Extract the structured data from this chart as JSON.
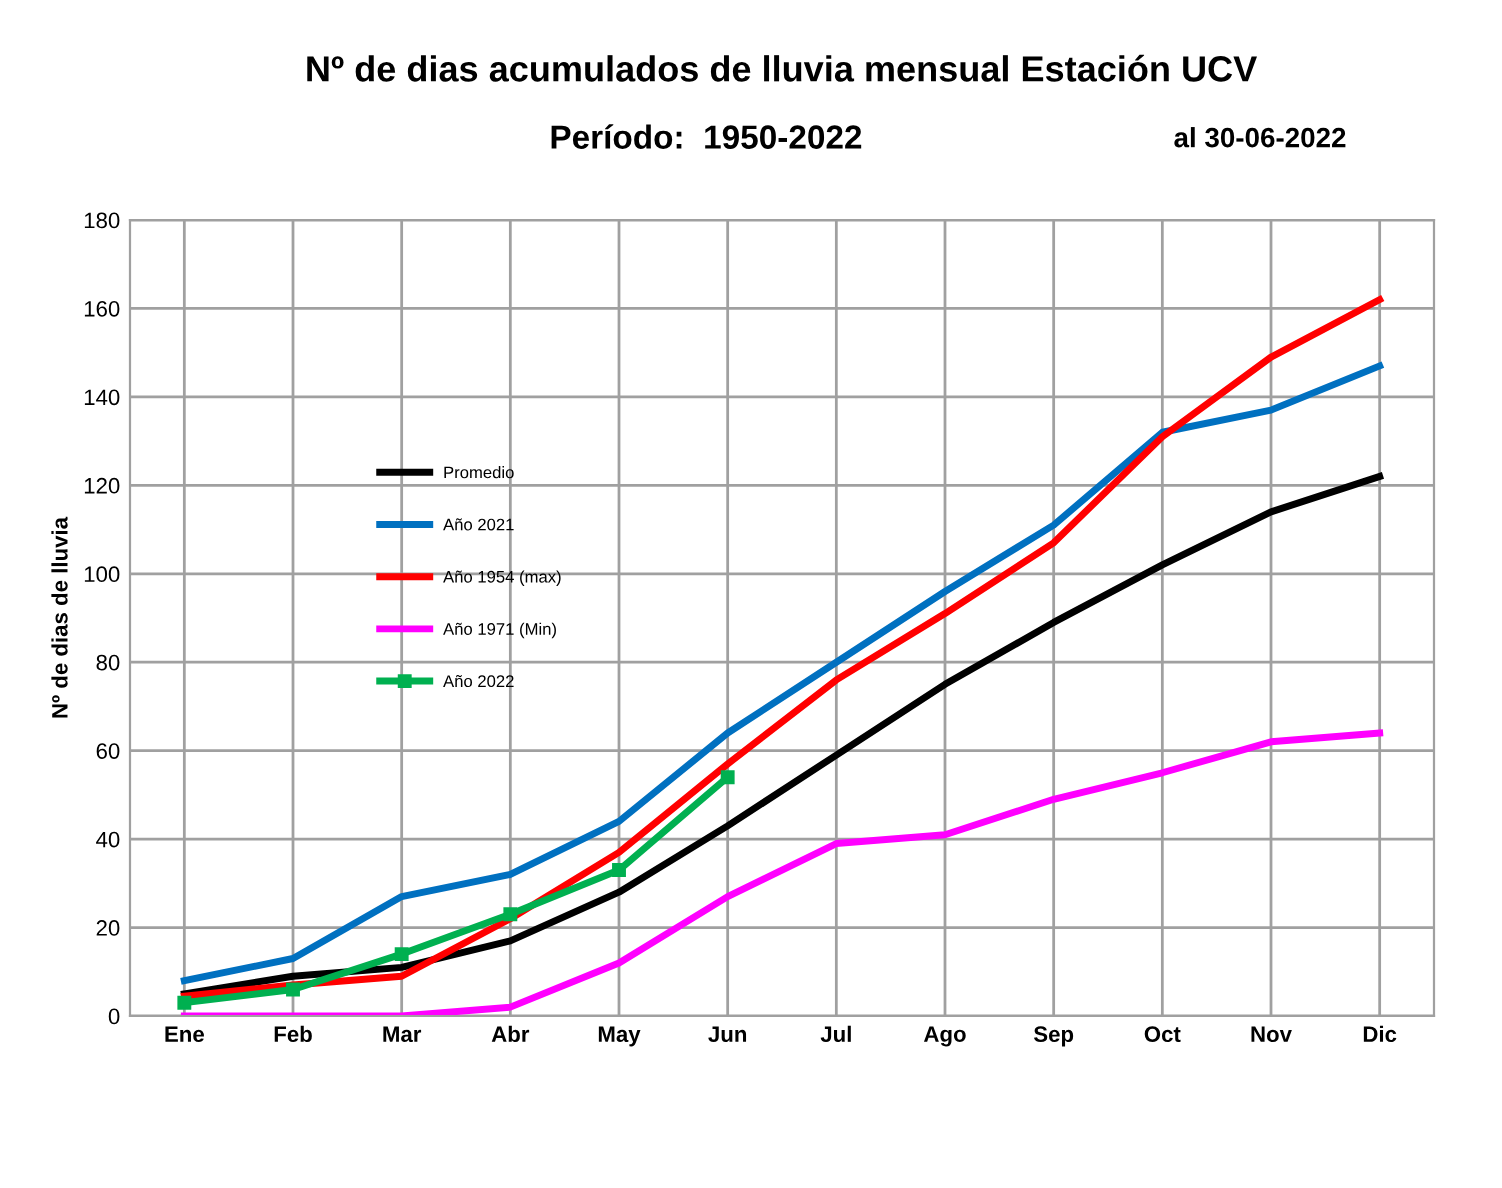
{
  "chart_data": {
    "type": "line",
    "title": "Nº de dias acumulados de lluvia mensual Estación UCV",
    "subtitle": "Período:  1950-2022",
    "annotations": [
      "al 30-06-2022"
    ],
    "ylabel": "Nº de dias de lluvia",
    "categories": [
      "Ene",
      "Feb",
      "Mar",
      "Abr",
      "May",
      "Jun",
      "Jul",
      "Ago",
      "Sep",
      "Oct",
      "Nov",
      "Dic"
    ],
    "ylim": [
      0,
      180
    ],
    "yticks": [
      0,
      20,
      40,
      60,
      80,
      100,
      120,
      140,
      160,
      180
    ],
    "grid": true,
    "legend": "center left",
    "line_style": "solid",
    "series": [
      {
        "name": "Promedio",
        "color": "#000000",
        "marker": "none",
        "values": [
          5,
          9,
          11,
          17,
          28,
          43,
          59,
          75,
          89,
          102,
          114,
          122
        ]
      },
      {
        "name": "Año 2021",
        "color": "#0070c0",
        "marker": "none",
        "values": [
          8,
          13,
          27,
          32,
          44,
          64,
          80,
          96,
          111,
          132,
          137,
          147
        ]
      },
      {
        "name": "Año 1954 (max)",
        "color": "#ff0000",
        "marker": "none",
        "values": [
          4.5,
          7,
          9,
          22,
          37,
          57,
          76,
          91,
          107,
          131,
          149,
          162
        ]
      },
      {
        "name": "Año 1971 (Min)",
        "color": "#ff00ff",
        "marker": "none",
        "values": [
          0,
          0,
          0,
          2,
          12,
          27,
          39,
          41,
          49,
          55,
          62,
          64
        ]
      },
      {
        "name": "Año 2022",
        "color": "#00b050",
        "marker": "square",
        "values": [
          3,
          6,
          14,
          23,
          33,
          54,
          null,
          null,
          null,
          null,
          null,
          null
        ]
      }
    ]
  }
}
